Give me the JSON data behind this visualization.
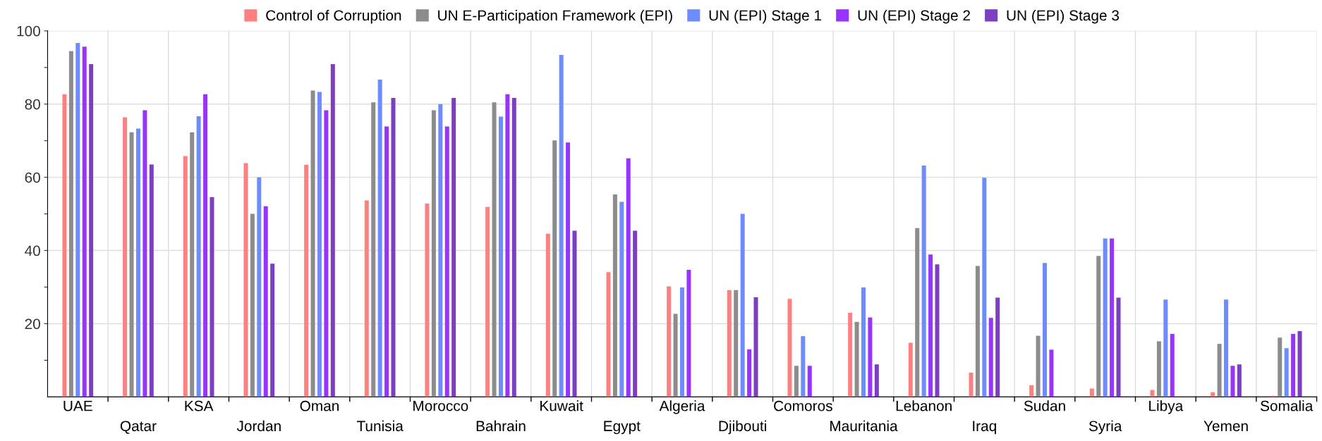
{
  "chart_data": {
    "type": "bar",
    "categories": [
      "UAE",
      "Qatar",
      "KSA",
      "Jordan",
      "Oman",
      "Tunisia",
      "Morocco",
      "Bahrain",
      "Kuwait",
      "Egypt",
      "Algeria",
      "Djibouti",
      "Comoros",
      "Mauritania",
      "Lebanon",
      "Iraq",
      "Sudan",
      "Syria",
      "Libya",
      "Yemen",
      "Somalia"
    ],
    "series": [
      {
        "name": "Control of Corruption",
        "color": "#ff8080",
        "values": [
          82.7,
          76.4,
          65.8,
          63.9,
          63.4,
          53.7,
          52.8,
          51.9,
          44.6,
          34.1,
          30.2,
          29.2,
          26.8,
          23.0,
          14.8,
          6.6,
          3.2,
          2.3,
          1.9,
          1.3,
          0.3
        ]
      },
      {
        "name": "UN E-Participation Framework (EPI)",
        "color": "#8c8c8c",
        "values": [
          94.5,
          72.3,
          72.3,
          50.0,
          83.7,
          80.5,
          78.3,
          80.5,
          70.1,
          55.3,
          22.7,
          29.2,
          8.5,
          20.5,
          46.1,
          35.8,
          16.7,
          38.5,
          15.2,
          14.5,
          16.2
        ]
      },
      {
        "name": "UN (EPI) Stage 1",
        "color": "#6e8cff",
        "values": [
          96.7,
          73.3,
          76.7,
          60.0,
          83.3,
          86.7,
          80.0,
          76.6,
          93.4,
          53.3,
          29.9,
          50.0,
          16.6,
          29.9,
          63.2,
          59.9,
          36.6,
          43.3,
          26.6,
          26.6,
          13.3
        ]
      },
      {
        "name": "UN (EPI) Stage 2",
        "color": "#9933ff",
        "values": [
          95.7,
          78.3,
          82.7,
          52.1,
          78.3,
          73.9,
          73.9,
          82.7,
          69.5,
          65.2,
          34.7,
          13.0,
          8.5,
          21.7,
          38.9,
          21.6,
          12.9,
          43.3,
          17.2,
          8.5,
          17.2
        ]
      },
      {
        "name": "UN (EPI) Stage 3",
        "color": "#7b3fbf",
        "values": [
          90.9,
          63.5,
          54.6,
          36.4,
          90.9,
          81.7,
          81.7,
          81.7,
          45.4,
          45.4,
          null,
          27.2,
          null,
          8.9,
          36.2,
          27.1,
          null,
          27.1,
          null,
          8.9,
          18.0
        ]
      }
    ],
    "ylim": [
      0,
      100
    ],
    "yticks": [
      {
        "value": 10,
        "label": null
      },
      20,
      {
        "value": 30,
        "label": null
      },
      40,
      {
        "value": 50,
        "label": null
      },
      60,
      {
        "value": 70,
        "label": null
      },
      80,
      {
        "value": 90,
        "label": null
      },
      100
    ],
    "grid": true,
    "legend": "top"
  }
}
